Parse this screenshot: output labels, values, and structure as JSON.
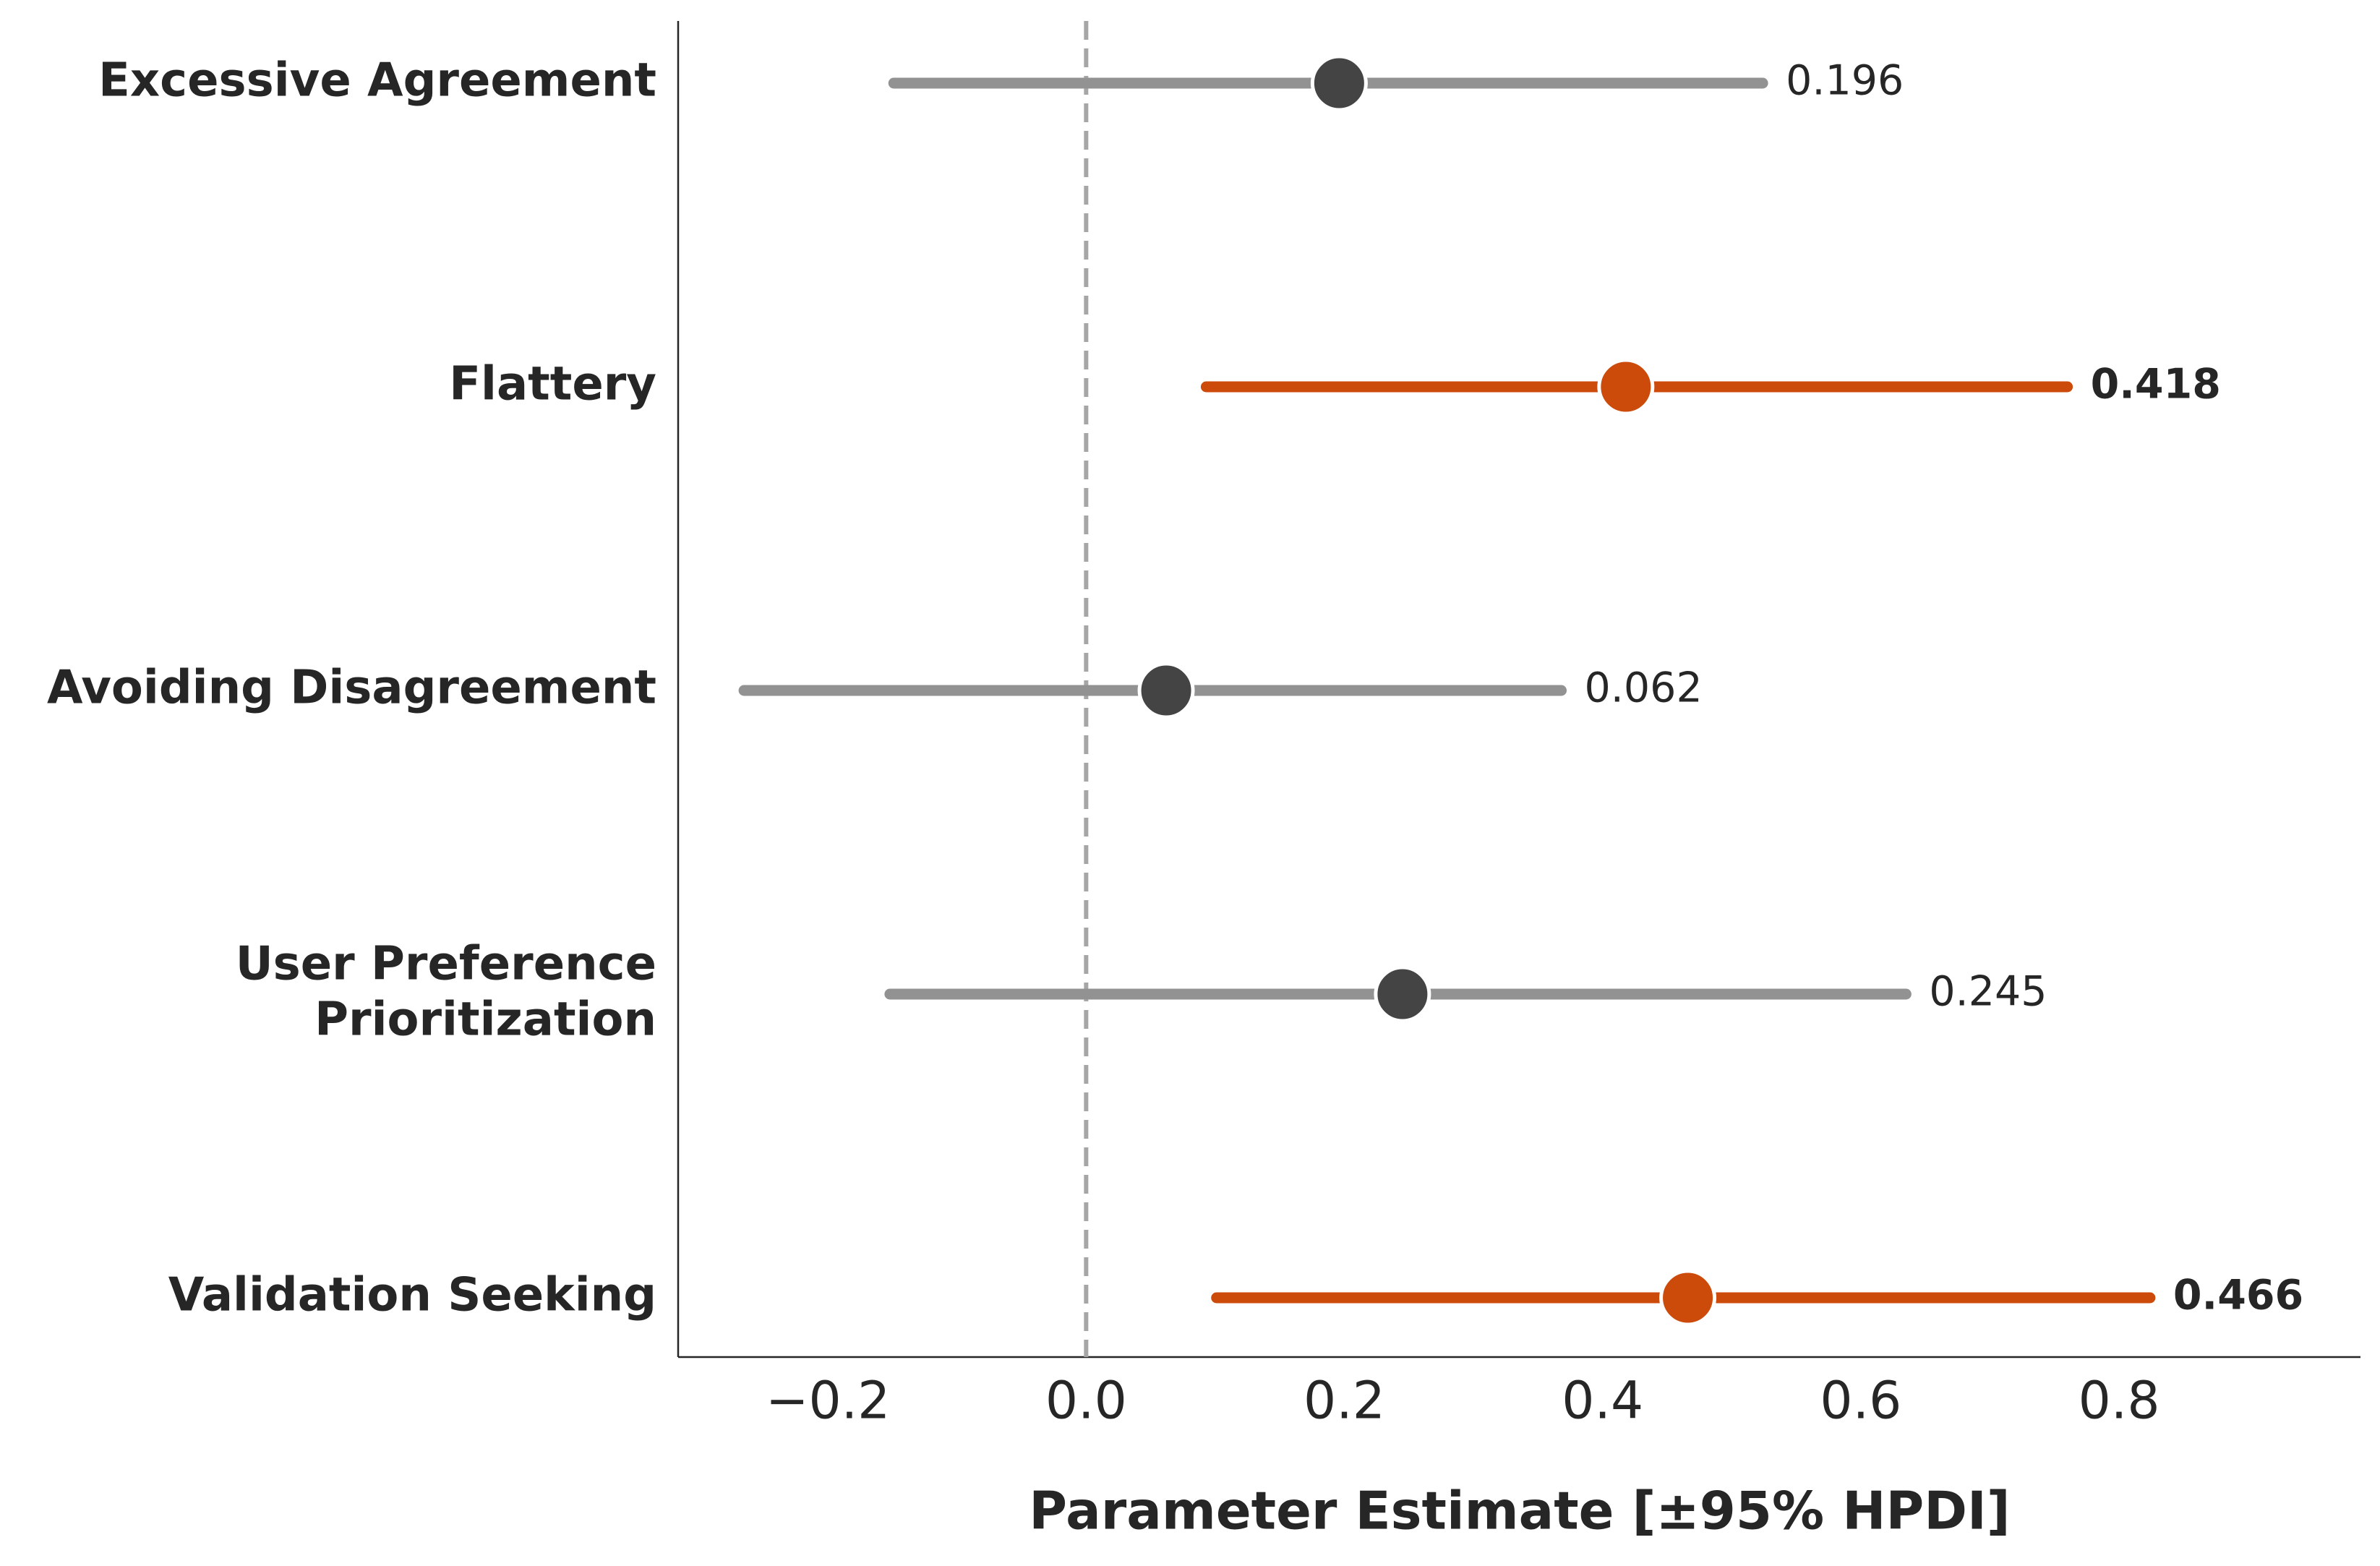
{
  "chart_data": {
    "type": "forest",
    "categories": [
      "Excessive Agreement",
      "Flattery",
      "Avoiding Disagreement",
      "User Preference\nPrioritization",
      "Validation Seeking"
    ],
    "values": [
      0.196,
      0.418,
      0.062,
      0.245,
      0.466
    ],
    "lower": [
      -0.149,
      0.093,
      -0.265,
      -0.152,
      0.101
    ],
    "upper": [
      0.524,
      0.76,
      0.368,
      0.635,
      0.824
    ],
    "point_colors": [
      "#444444",
      "#cc4a0a",
      "#444444",
      "#444444",
      "#cc4a0a"
    ],
    "line_colors": [
      "#929292",
      "#cc4a0a",
      "#929292",
      "#929292",
      "#cc4a0a"
    ],
    "xlabel": "Parameter Estimate [±95% HPDI]",
    "xlim": [
      -0.316,
      0.987
    ],
    "xticks": [
      {
        "value": -0.2,
        "label": "−0.2"
      },
      {
        "value": 0,
        "label": "0.0"
      },
      0.2,
      0.4,
      0.6,
      0.8
    ],
    "reference_line": 0
  }
}
